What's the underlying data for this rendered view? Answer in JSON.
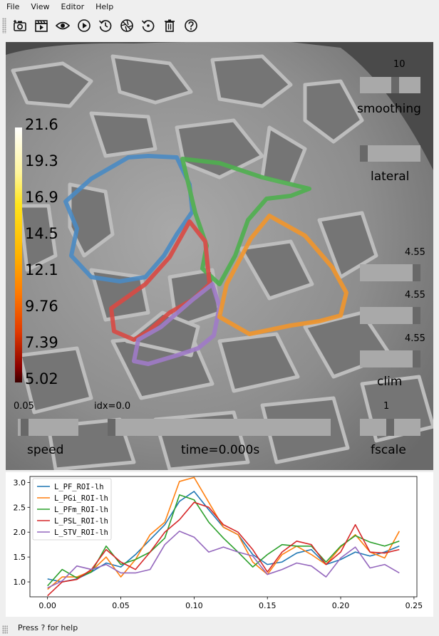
{
  "menu": {
    "file": "File",
    "view": "View",
    "editor": "Editor",
    "help": "Help"
  },
  "toolbar": {
    "icons": [
      "screenshot-icon",
      "movie-icon",
      "visibility-icon",
      "play-icon",
      "reset-time-icon",
      "shading-icon",
      "restore-icon",
      "clear-icon",
      "help-icon"
    ]
  },
  "colorbar": {
    "labels": [
      "21.6",
      "19.3",
      "16.9",
      "14.5",
      "12.1",
      "9.76",
      "7.39",
      "5.02"
    ]
  },
  "sliders": {
    "smoothing": {
      "label": "smoothing",
      "value": "10",
      "position": 0.6
    },
    "orientation": {
      "label": "lateral",
      "position": 0.0
    },
    "clim": {
      "label": "clim",
      "values": [
        "4.55",
        "4.55",
        "4.55"
      ],
      "positions": [
        1.0,
        1.0,
        1.0
      ]
    },
    "speed": {
      "label": "speed",
      "value": "0.05",
      "position": 0.05
    },
    "time": {
      "label": "time=0.000s",
      "value": "idx=0.0",
      "position": 0.0
    },
    "fscale": {
      "label": "fscale",
      "value": "1",
      "position": 0.5
    }
  },
  "status": {
    "text": "Press ? for help"
  },
  "chart_data": {
    "type": "line",
    "x": [
      0.0,
      0.01,
      0.02,
      0.03,
      0.04,
      0.05,
      0.06,
      0.07,
      0.08,
      0.09,
      0.1,
      0.11,
      0.12,
      0.13,
      0.14,
      0.15,
      0.16,
      0.17,
      0.18,
      0.19,
      0.2,
      0.21,
      0.22,
      0.23,
      0.24
    ],
    "xlim": [
      -0.012,
      0.252
    ],
    "ylim": [
      0.7,
      3.12
    ],
    "xticks": [
      "0.00",
      "0.05",
      "0.10",
      "0.15",
      "0.20",
      "0.25"
    ],
    "yticks": [
      "1.0",
      "1.5",
      "2.0",
      "2.5",
      "3.0"
    ],
    "legend_position": "top-left",
    "series": [
      {
        "name": "L_PF_ROI-lh",
        "color": "#1f77b4",
        "values": [
          1.06,
          1.0,
          1.06,
          1.2,
          1.38,
          1.3,
          1.55,
          1.85,
          2.15,
          2.62,
          2.82,
          2.45,
          2.1,
          1.95,
          1.55,
          1.35,
          1.4,
          1.58,
          1.65,
          1.35,
          1.45,
          1.6,
          1.52,
          1.6,
          1.72
        ]
      },
      {
        "name": "L_PGi_ROI-lh",
        "color": "#ff7f0e",
        "values": [
          0.85,
          1.1,
          1.1,
          1.22,
          1.5,
          1.1,
          1.45,
          1.95,
          2.2,
          3.02,
          3.1,
          2.6,
          2.1,
          1.95,
          1.4,
          1.15,
          1.55,
          1.72,
          1.55,
          1.35,
          1.7,
          1.95,
          1.6,
          1.48,
          2.02
        ]
      },
      {
        "name": "L_PFm_ROI-lh",
        "color": "#2ca02c",
        "values": [
          0.92,
          1.25,
          1.08,
          1.2,
          1.72,
          1.35,
          1.45,
          1.6,
          1.88,
          2.75,
          2.65,
          2.2,
          1.88,
          1.6,
          1.3,
          1.55,
          1.75,
          1.72,
          1.72,
          1.4,
          1.72,
          1.93,
          1.8,
          1.72,
          1.82
        ]
      },
      {
        "name": "L_PSL_ROI-lh",
        "color": "#d62728",
        "values": [
          0.72,
          1.0,
          1.05,
          1.25,
          1.65,
          1.4,
          1.25,
          1.6,
          2.0,
          2.25,
          2.6,
          2.5,
          2.15,
          2.0,
          1.65,
          1.2,
          1.6,
          1.82,
          1.75,
          1.35,
          1.6,
          2.15,
          1.6,
          1.58,
          1.65
        ]
      },
      {
        "name": "L_STV_ROI-lh",
        "color": "#9467bd",
        "values": [
          0.88,
          1.02,
          1.32,
          1.25,
          1.35,
          1.18,
          1.18,
          1.25,
          1.75,
          2.02,
          1.9,
          1.6,
          1.7,
          1.6,
          1.52,
          1.15,
          1.25,
          1.38,
          1.32,
          1.1,
          1.48,
          1.7,
          1.28,
          1.35,
          1.18
        ]
      }
    ]
  }
}
